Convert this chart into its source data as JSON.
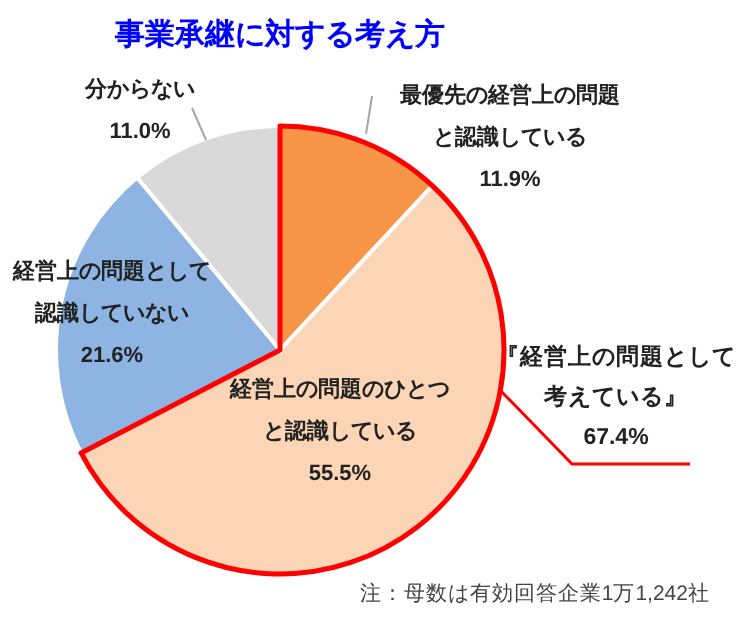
{
  "chart_data": {
    "type": "pie",
    "title": "事業承継に対する考え方",
    "categories": [
      "最優先の経営上の問題と認識している",
      "経営上の問題のひとつと認識している",
      "経営上の問題として認識していない",
      "分からない"
    ],
    "values": [
      11.9,
      55.5,
      21.6,
      11.0
    ],
    "value_labels": [
      "11.9%",
      "55.5%",
      "21.6%",
      "11.0%"
    ],
    "colors": [
      "#f79646",
      "#fbd5b5",
      "#8eb4e3",
      "#d9d9d9"
    ],
    "annotations": [
      "『経営上の問題として考えている』\n67.4%",
      "注：母数は有効回答企業1万1,242社"
    ]
  }
}
